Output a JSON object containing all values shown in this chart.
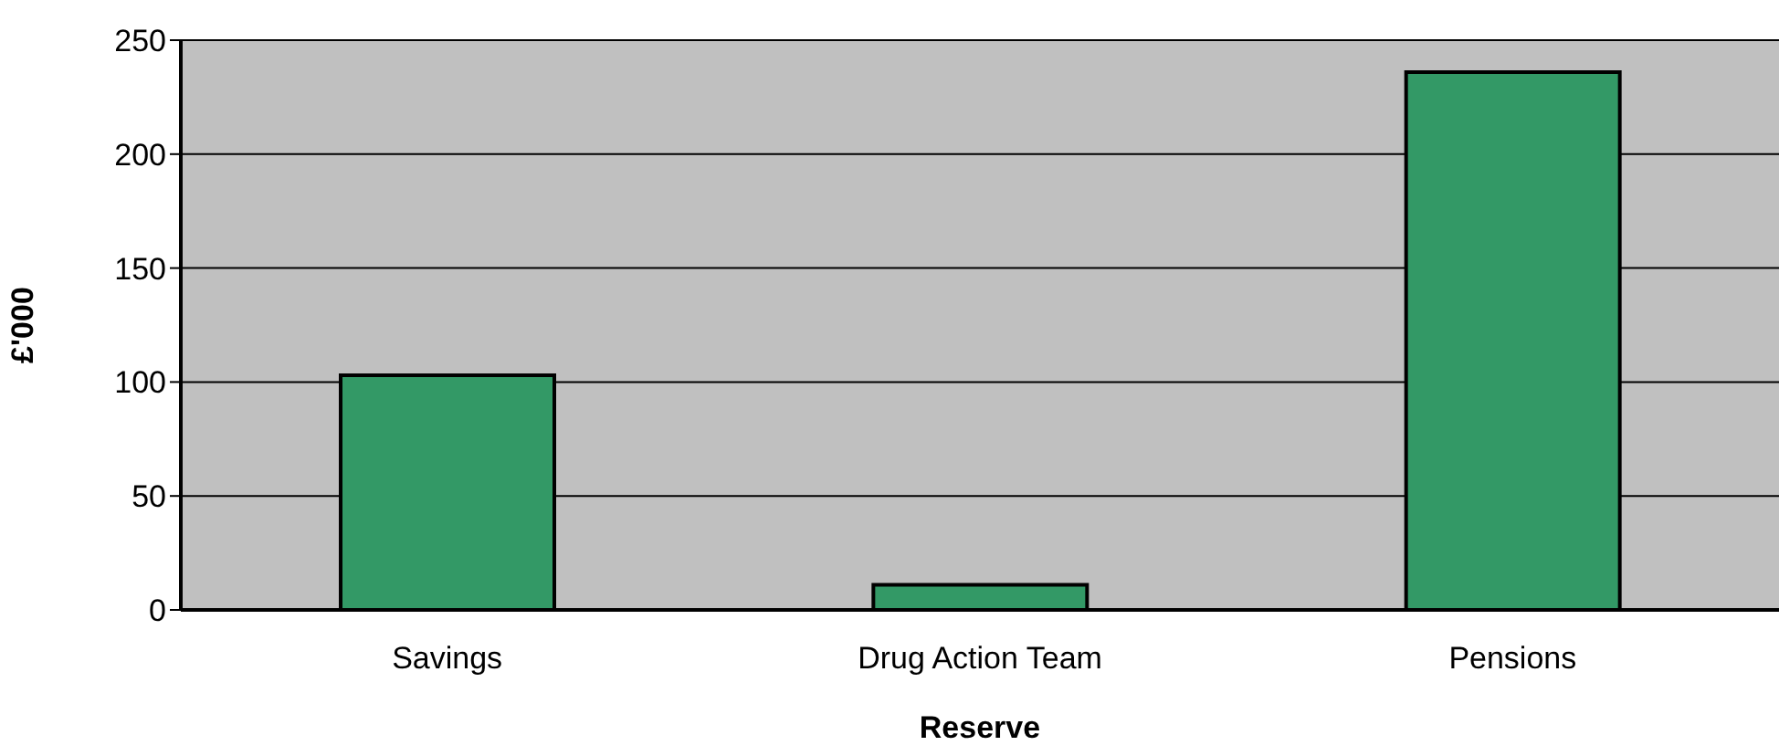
{
  "chart_data": {
    "type": "bar",
    "xlabel": "Reserve",
    "ylabel": "£'000",
    "categories": [
      "Savings",
      "Drug Action Team",
      "Pensions"
    ],
    "values": [
      103,
      11,
      236
    ],
    "color": "#339966",
    "ylim": [
      0,
      250
    ],
    "yticks": [
      0,
      50,
      100,
      150,
      200,
      250
    ],
    "grid": "y"
  }
}
